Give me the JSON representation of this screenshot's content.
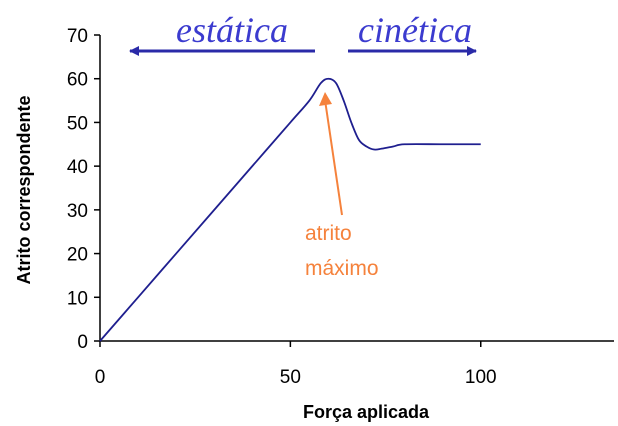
{
  "chart_data": {
    "type": "line",
    "xlabel": "Força aplicada",
    "ylabel": "Atrito correspondente",
    "xlim": [
      0,
      135
    ],
    "ylim": [
      0,
      70
    ],
    "xticks": [
      0,
      50,
      100
    ],
    "yticks": [
      0,
      10,
      20,
      30,
      40,
      50,
      60,
      70
    ],
    "grid": false,
    "series": [
      {
        "color": "#1f1f8f",
        "points": [
          [
            0,
            0
          ],
          [
            10,
            10
          ],
          [
            20,
            20
          ],
          [
            30,
            30
          ],
          [
            40,
            40
          ],
          [
            50,
            50
          ],
          [
            55,
            55
          ],
          [
            58,
            59
          ],
          [
            60,
            60
          ],
          [
            62,
            59
          ],
          [
            64,
            55
          ],
          [
            66,
            50
          ],
          [
            68,
            46
          ],
          [
            70,
            44.5
          ],
          [
            72,
            43.8
          ],
          [
            74,
            44
          ],
          [
            77,
            44.5
          ],
          [
            80,
            45
          ],
          [
            90,
            45
          ],
          [
            100,
            45
          ]
        ]
      }
    ],
    "annotations": {
      "static_label": "estática",
      "kinetic_label": "cinética",
      "max_label_line1": "atrito",
      "max_label_line2": "máximo",
      "region_color": "#3b3bcf",
      "arrow_color": "#2a2aa8",
      "max_color": "#f5823c"
    }
  }
}
